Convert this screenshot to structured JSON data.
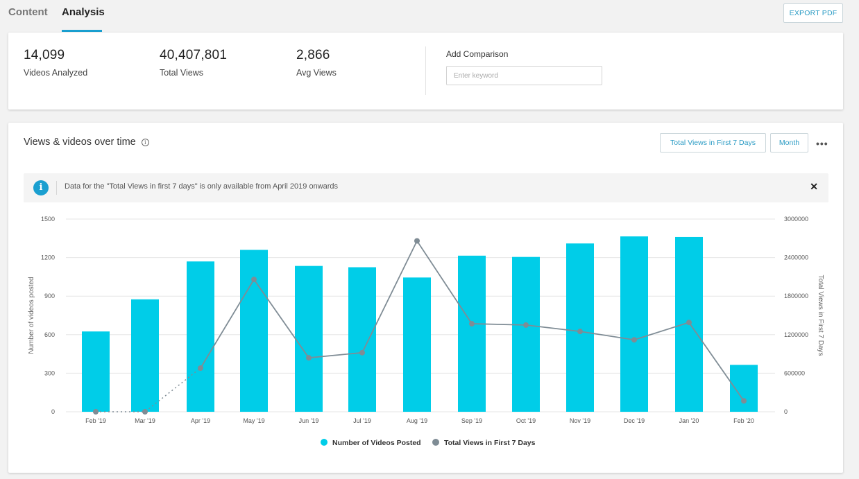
{
  "tabs": [
    {
      "label": "Content",
      "active": false
    },
    {
      "label": "Analysis",
      "active": true
    }
  ],
  "export_label": "EXPORT PDF",
  "stats": [
    {
      "value": "14,099",
      "label": "Videos Analyzed"
    },
    {
      "value": "40,407,801",
      "label": "Total Views"
    },
    {
      "value": "2,866",
      "label": "Avg Views"
    }
  ],
  "comparison": {
    "label": "Add Comparison",
    "placeholder": "Enter keyword",
    "value": ""
  },
  "chart_card": {
    "title": "Views & videos over time",
    "metric_button": "Total Views in First 7 Days",
    "period_button": "Month",
    "more_icon": "more-horizontal-icon",
    "notice": {
      "text": "Data for the \"Total Views in first 7 days\" is only available from April 2019 onwards",
      "icon": "info-icon",
      "close_icon": "close-icon"
    }
  },
  "colors": {
    "bar": "#00cde8",
    "line": "#7f8c95",
    "accent": "#1a9fd0"
  },
  "chart_data": {
    "type": "bar",
    "categories": [
      "Feb '19",
      "Mar '19",
      "Apr '19",
      "May '19",
      "Jun '19",
      "Jul '19",
      "Aug '19",
      "Sep '19",
      "Oct '19",
      "Nov '19",
      "Dec '19",
      "Jan '20",
      "Feb '20"
    ],
    "series": [
      {
        "name": "Number of Videos Posted",
        "type": "bar",
        "axis": "left",
        "values": [
          625,
          875,
          1170,
          1260,
          1135,
          1125,
          1045,
          1215,
          1205,
          1310,
          1365,
          1360,
          365
        ]
      },
      {
        "name": "Total Views in First 7 Days",
        "type": "line",
        "axis": "right",
        "values": [
          0,
          0,
          680000,
          2060000,
          840000,
          920000,
          2660000,
          1370000,
          1350000,
          1250000,
          1120000,
          1390000,
          170000
        ],
        "dotted_until_index": 2
      }
    ],
    "ylabel": "Number of videos posted",
    "y2label": "Total Views in First 7 Days",
    "ylim": [
      0,
      1500
    ],
    "y2lim": [
      0,
      3000000
    ],
    "yticks": [
      "0",
      "300",
      "600",
      "900",
      "1200",
      "1500"
    ],
    "y2ticks": [
      "0",
      "600000",
      "1200000",
      "1800000",
      "2400000",
      "3000000"
    ],
    "grid": true,
    "legend": "bottom-center"
  }
}
